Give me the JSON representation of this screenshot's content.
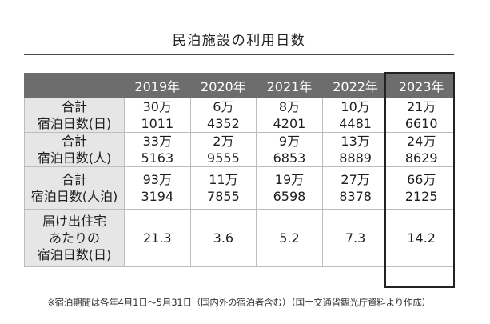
{
  "title": "民泊施設の利用日数",
  "table": {
    "corner": "",
    "years": [
      "2019年",
      "2020年",
      "2021年",
      "2022年",
      "2023年"
    ],
    "highlighted_year": "2023年",
    "rows": [
      {
        "label": [
          "合計",
          "宿泊日数(日)"
        ],
        "cells": [
          [
            "30万",
            "1011"
          ],
          [
            "6万",
            "4352"
          ],
          [
            "8万",
            "4201"
          ],
          [
            "10万",
            "4481"
          ],
          [
            "21万",
            "6610"
          ]
        ]
      },
      {
        "label": [
          "合計",
          "宿泊日数(人)"
        ],
        "cells": [
          [
            "33万",
            "5163"
          ],
          [
            "2万",
            "9555"
          ],
          [
            "9万",
            "6853"
          ],
          [
            "13万",
            "8889"
          ],
          [
            "24万",
            "8629"
          ]
        ]
      },
      {
        "label": [
          "合計",
          "宿泊日数(人泊)"
        ],
        "cells": [
          [
            "93万",
            "3194"
          ],
          [
            "11万",
            "7855"
          ],
          [
            "19万",
            "6598"
          ],
          [
            "27万",
            "8378"
          ],
          [
            "66万",
            "2125"
          ]
        ]
      },
      {
        "label": [
          "届け出住宅",
          "あたりの",
          "宿泊日数(日)"
        ],
        "cells": [
          [
            "21.3"
          ],
          [
            "3.6"
          ],
          [
            "5.2"
          ],
          [
            "7.3"
          ],
          [
            "14.2"
          ]
        ]
      }
    ]
  },
  "footnote": "※宿泊期間は各年4月1日～5月31日（国内外の宿泊者含む）（国土交通省観光庁資料より作成）",
  "colors": {
    "header_bg": "#6d6d6d",
    "label_bg": "#e6e6e6",
    "highlight_border": "#222222"
  }
}
